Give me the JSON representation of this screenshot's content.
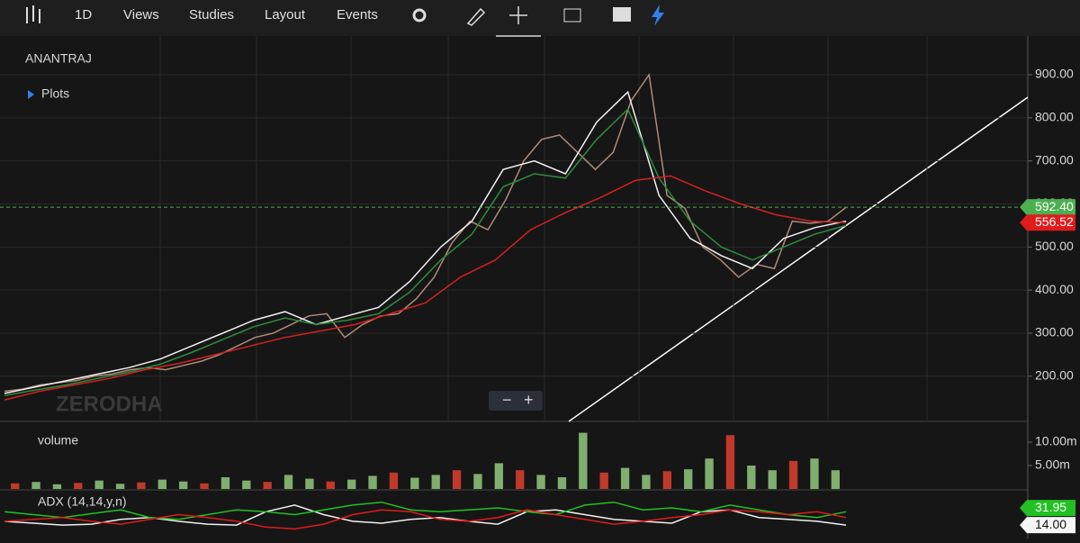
{
  "toolbar": {
    "interval": "1D",
    "menus": [
      "Views",
      "Studies",
      "Layout",
      "Events"
    ]
  },
  "symbol": "ANANTRAJ",
  "plots_label": "Plots",
  "watermark": "ZERODHA",
  "chart_data": [
    {
      "type": "line",
      "name": "price",
      "ylim": [
        95,
        990
      ],
      "yticks": [
        {
          "value": 200,
          "label": "200.00"
        },
        {
          "value": 300,
          "label": "300.00"
        },
        {
          "value": 400,
          "label": "400.00"
        },
        {
          "value": 500,
          "label": "500.00"
        },
        {
          "value": 600,
          "label": "600.00"
        },
        {
          "value": 700,
          "label": "700.00"
        },
        {
          "value": 800,
          "label": "800.00"
        },
        {
          "value": 900,
          "label": "900.00"
        }
      ],
      "grid": true,
      "series": [
        {
          "color": "#b08a78",
          "values": [
            165,
            170,
            180,
            185,
            190,
            200,
            205,
            215,
            220,
            215,
            225,
            235,
            250,
            270,
            290,
            300,
            320,
            340,
            345,
            290,
            320,
            340,
            345,
            380,
            430,
            510,
            560,
            540,
            610,
            700,
            750,
            760,
            720,
            680,
            720,
            840,
            900,
            620,
            590,
            500,
            470,
            430,
            460,
            450,
            560,
            555,
            560,
            592
          ]
        },
        {
          "color": "#f0f0f0",
          "values": [
            160,
            175,
            190,
            205,
            220,
            240,
            270,
            300,
            330,
            350,
            320,
            340,
            360,
            420,
            500,
            560,
            680,
            700,
            670,
            790,
            860,
            620,
            520,
            480,
            450,
            520,
            545,
            560
          ]
        },
        {
          "color": "#2e8b3e",
          "values": [
            155,
            168,
            180,
            195,
            210,
            228,
            255,
            285,
            315,
            335,
            320,
            330,
            345,
            395,
            470,
            530,
            640,
            670,
            660,
            750,
            820,
            660,
            560,
            500,
            470,
            500,
            530,
            550
          ]
        },
        {
          "color": "#d42020",
          "values": [
            145,
            165,
            180,
            195,
            215,
            230,
            250,
            270,
            290,
            305,
            320,
            345,
            370,
            430,
            470,
            540,
            580,
            615,
            655,
            665,
            630,
            600,
            575,
            560,
            557
          ]
        }
      ],
      "price_tags": [
        {
          "value": 592.4,
          "label": "592.40",
          "color": "#4caf50"
        },
        {
          "value": 556.52,
          "label": "556.52",
          "color": "#e01b1b"
        }
      ]
    },
    {
      "type": "bar",
      "name": "volume",
      "title": "volume",
      "ylim": [
        0,
        12.5
      ],
      "yticks": [
        {
          "value": 5,
          "label": "5.00m"
        },
        {
          "value": 10,
          "label": "10.00m"
        }
      ],
      "values": [
        1.2,
        1.5,
        1.0,
        1.3,
        1.8,
        1.1,
        1.4,
        2.0,
        1.6,
        1.2,
        2.5,
        1.8,
        1.5,
        3.0,
        2.2,
        1.6,
        2.0,
        2.8,
        3.5,
        2.4,
        3.0,
        4.0,
        3.2,
        5.5,
        4.0,
        3.0,
        2.5,
        12.0,
        3.5,
        4.5,
        3.0,
        3.8,
        4.2,
        6.5,
        11.5,
        5.0,
        4.0,
        6.0,
        6.5,
        4.0
      ],
      "colors": [
        "#c0392b",
        "#7fae6e",
        "#7fae6e",
        "#c0392b",
        "#7fae6e",
        "#7fae6e",
        "#c0392b",
        "#7fae6e",
        "#7fae6e",
        "#c0392b",
        "#7fae6e",
        "#7fae6e",
        "#c0392b",
        "#7fae6e",
        "#7fae6e",
        "#c0392b",
        "#7fae6e",
        "#7fae6e",
        "#c0392b",
        "#7fae6e",
        "#7fae6e",
        "#c0392b",
        "#7fae6e",
        "#7fae6e",
        "#c0392b",
        "#7fae6e",
        "#7fae6e",
        "#7fae6e",
        "#c0392b",
        "#7fae6e",
        "#7fae6e",
        "#c0392b",
        "#7fae6e",
        "#7fae6e",
        "#c0392b",
        "#7fae6e",
        "#7fae6e",
        "#c0392b",
        "#7fae6e",
        "#7fae6e"
      ]
    },
    {
      "type": "line",
      "name": "adx",
      "title": "ADX (14,14,y,n)",
      "ylim": [
        0,
        49
      ],
      "series": [
        {
          "color": "#f0f0f0",
          "values": [
            18,
            16,
            14,
            15,
            20,
            22,
            18,
            15,
            14,
            28,
            35,
            25,
            18,
            16,
            20,
            22,
            18,
            15,
            28,
            30,
            25,
            20,
            18,
            16,
            28,
            30,
            22,
            20,
            18,
            14
          ]
        },
        {
          "color": "#22c022",
          "values": [
            28,
            25,
            22,
            26,
            30,
            22,
            20,
            25,
            30,
            28,
            25,
            30,
            35,
            38,
            30,
            28,
            30,
            32,
            28,
            25,
            35,
            38,
            30,
            32,
            28,
            35,
            30,
            25,
            22,
            28
          ]
        },
        {
          "color": "#e01b1b",
          "values": [
            18,
            20,
            22,
            18,
            15,
            20,
            25,
            22,
            18,
            12,
            10,
            15,
            25,
            30,
            28,
            20,
            18,
            22,
            30,
            25,
            20,
            15,
            18,
            22,
            25,
            30,
            28,
            25,
            28,
            22
          ]
        }
      ],
      "price_tags": [
        {
          "value": 31.95,
          "label": "31.95",
          "color": "#22c022"
        },
        {
          "value": 14,
          "label": "14.00",
          "color": "#f5f5f5"
        }
      ]
    }
  ]
}
